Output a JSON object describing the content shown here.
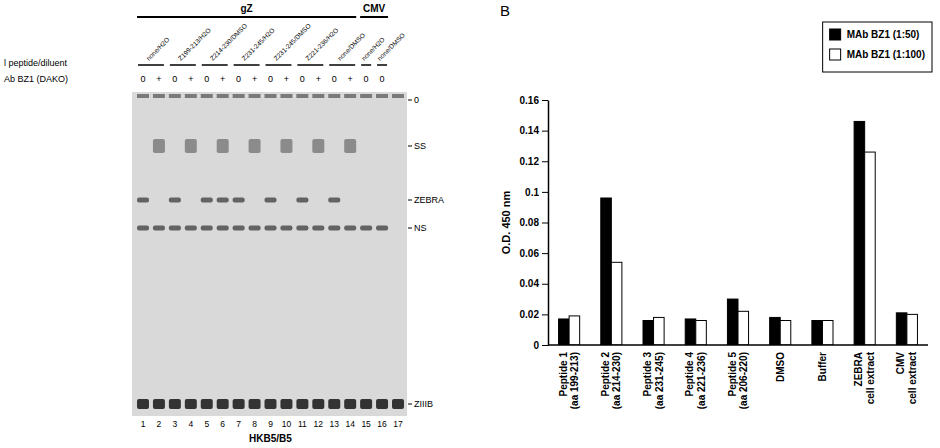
{
  "gel": {
    "groups": [
      {
        "label": "gZ",
        "lanes": [
          1,
          14
        ]
      },
      {
        "label": "CMV",
        "lanes": [
          15,
          16
        ]
      }
    ],
    "row_labels": [
      "l peptide/diluent",
      "Ab BZ1 (DAKO)"
    ],
    "conditions": [
      {
        "label": "none/H2O",
        "lanes": [
          1,
          2
        ]
      },
      {
        "label": "Z199-213/H2O",
        "lanes": [
          3,
          4
        ]
      },
      {
        "label": "Z214-230/DMSO",
        "lanes": [
          5,
          6
        ]
      },
      {
        "label": "Z231-245/H2O",
        "lanes": [
          7,
          8
        ]
      },
      {
        "label": "Z231-245/DMSO",
        "lanes": [
          9,
          10
        ]
      },
      {
        "label": "Z221-236/H2O",
        "lanes": [
          11,
          12
        ]
      },
      {
        "label": "none/DMSO",
        "lanes": [
          13,
          14
        ]
      },
      {
        "label": "none/H2O",
        "lanes": [
          15,
          15
        ]
      },
      {
        "label": "none/DMSO",
        "lanes": [
          16,
          16
        ]
      }
    ],
    "antibody": [
      "0",
      "+",
      "0",
      "+",
      "0",
      "+",
      "0",
      "+",
      "0",
      "+",
      "0",
      "+",
      "0",
      "+",
      "0",
      "0",
      null
    ],
    "lane_numbers": [
      1,
      2,
      3,
      4,
      5,
      6,
      7,
      8,
      9,
      10,
      11,
      12,
      13,
      14,
      15,
      16,
      17
    ],
    "markers": [
      "0",
      "SS",
      "ZEBRA",
      "NS",
      "ZIIIB"
    ],
    "bands": [
      [
        "ZEBRA",
        "NS",
        "ZIIIB"
      ],
      [
        "SS",
        "NS",
        "ZIIIB"
      ],
      [
        "ZEBRA",
        "NS",
        "ZIIIB"
      ],
      [
        "SS",
        "NS",
        "ZIIIB"
      ],
      [
        "ZEBRA",
        "NS",
        "ZIIIB"
      ],
      [
        "ZEBRA",
        "SS",
        "NS",
        "ZIIIB"
      ],
      [
        "ZEBRA",
        "NS",
        "ZIIIB"
      ],
      [
        "SS",
        "NS",
        "ZIIIB"
      ],
      [
        "ZEBRA",
        "NS",
        "ZIIIB"
      ],
      [
        "SS",
        "NS",
        "ZIIIB"
      ],
      [
        "ZEBRA",
        "NS",
        "ZIIIB"
      ],
      [
        "SS",
        "NS",
        "ZIIIB"
      ],
      [
        "ZEBRA",
        "NS",
        "ZIIIB"
      ],
      [
        "SS",
        "NS",
        "ZIIIB"
      ],
      [
        "NS",
        "ZIIIB"
      ],
      [
        "NS",
        "ZIIIB"
      ],
      [
        "ZIIIB"
      ]
    ],
    "cell_line": "HKB5/B5"
  },
  "chart_data": {
    "type": "bar",
    "panel": "B",
    "y_label": "O.D. 450 nm",
    "categories": [
      "Peptide 1 (aa 199-213)",
      "Peptide 2 (aa 214-230)",
      "Peptide 3 (aa 231-245)",
      "Peptide 4 (aa 221-236)",
      "Peptide 5 (aa 206-220)",
      "DMSO",
      "Buffer",
      "ZEBRA cell extract",
      "CMV cell extract"
    ],
    "series": [
      {
        "name": "MAb BZ1 (1:50)",
        "color": "#000000",
        "values": [
          0.017,
          0.096,
          0.016,
          0.017,
          0.03,
          0.018,
          0.016,
          0.146,
          0.021
        ]
      },
      {
        "name": "MAb BZ1 (1:100)",
        "color": "#ffffff",
        "values": [
          0.019,
          0.054,
          0.018,
          0.016,
          0.022,
          0.016,
          0.016,
          0.126,
          0.02
        ]
      }
    ],
    "ylim": [
      0,
      0.16
    ],
    "yticks": [
      0,
      0.02,
      0.04,
      0.06,
      0.08,
      0.1,
      0.12,
      0.14,
      0.16
    ],
    "grid": false,
    "legend": "top-right"
  }
}
